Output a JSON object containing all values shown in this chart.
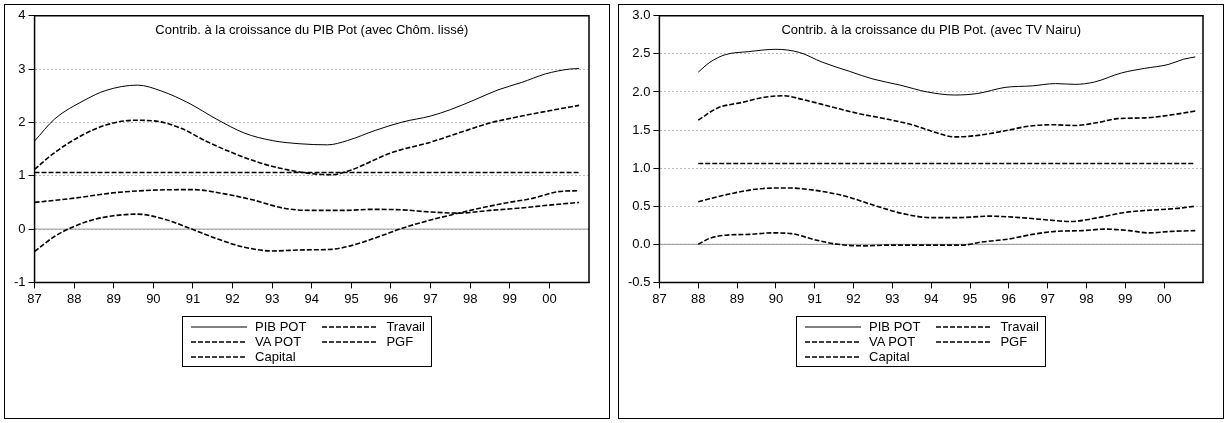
{
  "chart_data": [
    {
      "type": "line",
      "title": "Contrib. à la croissance du PIB Pot (avec Chôm. lissé)",
      "xlim": [
        1987,
        2001
      ],
      "ylim": [
        -1,
        4
      ],
      "xticks": [
        {
          "value": 1987,
          "label": "87"
        },
        {
          "value": 1988,
          "label": "88"
        },
        {
          "value": 1989,
          "label": "89"
        },
        {
          "value": 1990,
          "label": "90"
        },
        {
          "value": 1991,
          "label": "91"
        },
        {
          "value": 1992,
          "label": "92"
        },
        {
          "value": 1993,
          "label": "93"
        },
        {
          "value": 1994,
          "label": "94"
        },
        {
          "value": 1995,
          "label": "95"
        },
        {
          "value": 1996,
          "label": "96"
        },
        {
          "value": 1997,
          "label": "97"
        },
        {
          "value": 1998,
          "label": "98"
        },
        {
          "value": 1999,
          "label": "99"
        },
        {
          "value": 2000,
          "label": "00"
        }
      ],
      "yticks": [
        -1,
        0,
        1,
        2,
        3,
        4
      ],
      "grid": "y",
      "legend": "bottom",
      "marker": "none",
      "ref_lines": [
        {
          "axis": "y",
          "value": 0,
          "color": "#999999"
        }
      ],
      "series": [
        {
          "name": "PIB POT",
          "color": "#000000",
          "line_style": "solid",
          "x": [
            1987.0,
            1987.5,
            1988.27,
            1988.8,
            1989.6,
            1990.2,
            1990.9,
            1991.6,
            1992.3,
            1993.0,
            1993.7,
            1994.4,
            1994.9,
            1995.6,
            1996.3,
            1997.0,
            1997.5,
            1998.1,
            1998.7,
            1999.3,
            1999.9,
            2000.5,
            2000.75
          ],
          "values": [
            1.65,
            2.06,
            2.42,
            2.6,
            2.7,
            2.59,
            2.36,
            2.06,
            1.8,
            1.66,
            1.6,
            1.58,
            1.66,
            1.85,
            2.01,
            2.12,
            2.24,
            2.42,
            2.61,
            2.75,
            2.91,
            3.0,
            3.01
          ]
        },
        {
          "name": "VA POT",
          "color": "#000000",
          "line_style": "dashed",
          "x": [
            1987.0,
            1987.5,
            1988.2,
            1988.8,
            1989.5,
            1990.0,
            1990.7,
            1991.3,
            1992.0,
            1992.7,
            1993.4,
            1994.0,
            1994.5,
            1995.0,
            1996.0,
            1997.0,
            1997.7,
            1998.5,
            1999.3,
            2000.0,
            2000.75
          ],
          "values": [
            1.12,
            1.43,
            1.76,
            1.95,
            2.04,
            2.03,
            1.89,
            1.66,
            1.43,
            1.24,
            1.11,
            1.04,
            1.02,
            1.11,
            1.43,
            1.63,
            1.8,
            1.99,
            2.12,
            2.22,
            2.32
          ]
        },
        {
          "name": "Capital",
          "color": "#000000",
          "line_style": "dashed",
          "x": [
            1987.0,
            1988.0,
            1989.0,
            1990.0,
            1991.0,
            1991.8,
            1992.5,
            1993.3,
            1994.0,
            1994.8,
            1995.5,
            1996.3,
            1997.0,
            1997.7,
            1998.5,
            1999.2,
            2000.0,
            2000.75
          ],
          "values": [
            0.5,
            0.58,
            0.68,
            0.73,
            0.74,
            0.66,
            0.55,
            0.39,
            0.35,
            0.35,
            0.37,
            0.36,
            0.32,
            0.3,
            0.35,
            0.39,
            0.45,
            0.5
          ]
        },
        {
          "name": "Travail",
          "color": "#000000",
          "line_style": "dashed",
          "x": [
            1987.0,
            1991.0,
            1995.0,
            2000.75
          ],
          "values": [
            1.06,
            1.06,
            1.06,
            1.06
          ]
        },
        {
          "name": "PGF",
          "color": "#000000",
          "line_style": "dashed",
          "x": [
            1987.0,
            1987.5,
            1988.0,
            1988.5,
            1989.0,
            1989.6,
            1990.3,
            1990.9,
            1991.6,
            1992.3,
            1993.0,
            1993.8,
            1994.5,
            1995.0,
            1995.7,
            1996.3,
            1997.0,
            1997.6,
            1998.3,
            1998.9,
            1999.6,
            2000.2,
            2000.75
          ],
          "values": [
            -0.42,
            -0.14,
            0.05,
            0.18,
            0.25,
            0.28,
            0.18,
            0.02,
            -0.18,
            -0.34,
            -0.41,
            -0.39,
            -0.38,
            -0.31,
            -0.14,
            0.02,
            0.17,
            0.28,
            0.4,
            0.49,
            0.58,
            0.7,
            0.72
          ]
        }
      ]
    },
    {
      "type": "line",
      "title": "Contrib. à la croissance du PIB Pot. (avec TV Nairu)",
      "xlim": [
        1987,
        2001
      ],
      "ylim": [
        -0.5,
        3.0
      ],
      "xticks": [
        {
          "value": 1987,
          "label": "87"
        },
        {
          "value": 1988,
          "label": "88"
        },
        {
          "value": 1989,
          "label": "89"
        },
        {
          "value": 1990,
          "label": "90"
        },
        {
          "value": 1991,
          "label": "91"
        },
        {
          "value": 1992,
          "label": "92"
        },
        {
          "value": 1993,
          "label": "93"
        },
        {
          "value": 1994,
          "label": "94"
        },
        {
          "value": 1995,
          "label": "95"
        },
        {
          "value": 1996,
          "label": "96"
        },
        {
          "value": 1997,
          "label": "97"
        },
        {
          "value": 1998,
          "label": "98"
        },
        {
          "value": 1999,
          "label": "99"
        },
        {
          "value": 2000,
          "label": "00"
        }
      ],
      "yticks": [
        -0.5,
        {
          "value": 0,
          "label": "0.0"
        },
        0.5,
        {
          "value": 1,
          "label": "1.0"
        },
        1.5,
        {
          "value": 2,
          "label": "2.0"
        },
        2.5,
        {
          "value": 3,
          "label": "3.0"
        }
      ],
      "grid": "y",
      "legend": "bottom",
      "marker": "none",
      "ref_lines": [
        {
          "axis": "y",
          "value": 0,
          "color": "#999999"
        }
      ],
      "series": [
        {
          "name": "PIB POT",
          "color": "#000000",
          "line_style": "solid",
          "x": [
            1988.0,
            1988.3,
            1988.7,
            1989.3,
            1990.0,
            1990.6,
            1991.2,
            1991.9,
            1992.5,
            1993.2,
            1993.9,
            1994.6,
            1995.2,
            1995.9,
            1996.6,
            1997.2,
            1997.7,
            1998.2,
            1998.9,
            1999.5,
            2000.1,
            2000.5,
            2000.8
          ],
          "values": [
            2.26,
            2.39,
            2.49,
            2.53,
            2.56,
            2.52,
            2.39,
            2.27,
            2.17,
            2.09,
            2.0,
            1.96,
            1.98,
            2.06,
            2.08,
            2.11,
            2.1,
            2.13,
            2.25,
            2.31,
            2.36,
            2.43,
            2.46
          ]
        },
        {
          "name": "VA POT",
          "color": "#000000",
          "line_style": "dashed",
          "x": [
            1988.0,
            1988.5,
            1989.1,
            1989.7,
            1990.2,
            1990.7,
            1991.4,
            1992.1,
            1992.8,
            1993.5,
            1994.1,
            1994.6,
            1995.2,
            1995.9,
            1996.5,
            1997.1,
            1997.7,
            1998.3,
            1998.8,
            1999.5,
            2000.2,
            2000.8
          ],
          "values": [
            1.63,
            1.79,
            1.86,
            1.93,
            1.95,
            1.9,
            1.81,
            1.72,
            1.65,
            1.57,
            1.47,
            1.41,
            1.43,
            1.49,
            1.55,
            1.57,
            1.56,
            1.6,
            1.65,
            1.66,
            1.7,
            1.75
          ]
        },
        {
          "name": "Capital",
          "color": "#000000",
          "line_style": "dashed",
          "x": [
            1988.0,
            1988.8,
            1989.6,
            1990.3,
            1991.0,
            1991.8,
            1992.6,
            1993.3,
            1994.0,
            1994.7,
            1995.5,
            1996.3,
            1997.0,
            1997.6,
            1998.3,
            1999.0,
            1999.7,
            2000.3,
            2000.8
          ],
          "values": [
            0.56,
            0.66,
            0.73,
            0.74,
            0.71,
            0.63,
            0.5,
            0.4,
            0.35,
            0.35,
            0.37,
            0.35,
            0.32,
            0.3,
            0.35,
            0.42,
            0.45,
            0.47,
            0.5
          ]
        },
        {
          "name": "Travail",
          "color": "#000000",
          "line_style": "dashed",
          "x": [
            1988.0,
            1992.0,
            1996.0,
            2000.8
          ],
          "values": [
            1.06,
            1.06,
            1.06,
            1.06
          ]
        },
        {
          "name": "PGF",
          "color": "#000000",
          "line_style": "dashed",
          "x": [
            1988.0,
            1988.3,
            1988.7,
            1989.3,
            1989.9,
            1990.4,
            1991.0,
            1991.6,
            1992.3,
            1992.9,
            1993.5,
            1994.2,
            1994.8,
            1995.3,
            1996.0,
            1996.6,
            1997.2,
            1997.9,
            1998.5,
            1999.1,
            1999.6,
            2000.2,
            2000.8
          ],
          "values": [
            0.0,
            0.08,
            0.12,
            0.13,
            0.15,
            0.14,
            0.06,
            0.0,
            -0.02,
            -0.01,
            -0.01,
            -0.01,
            -0.01,
            0.03,
            0.07,
            0.13,
            0.17,
            0.18,
            0.2,
            0.18,
            0.15,
            0.17,
            0.18
          ]
        }
      ]
    }
  ]
}
